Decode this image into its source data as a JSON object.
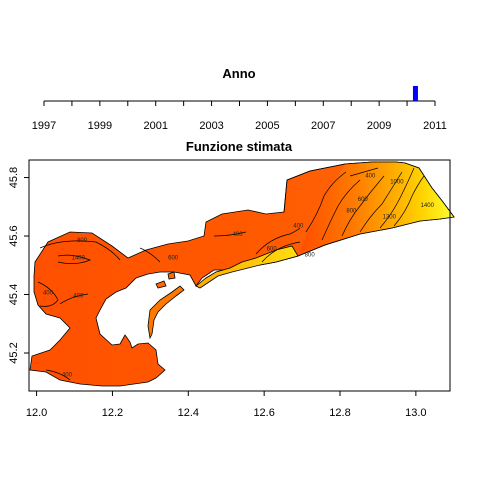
{
  "slider": {
    "title": "Anno",
    "ticks": [
      "1997",
      "1999",
      "2001",
      "2003",
      "2005",
      "2007",
      "2009",
      "2011"
    ],
    "range": [
      1997,
      2011
    ],
    "selected_year": 2010.3,
    "indicator_color": "#0000ff"
  },
  "chart_data": {
    "type": "heatmap",
    "title": "Funzione stimata",
    "xlabel": "",
    "ylabel": "",
    "xlim": [
      11.98,
      13.09
    ],
    "ylim": [
      45.07,
      45.86
    ],
    "x_ticks": [
      "12.0",
      "12.2",
      "12.4",
      "12.6",
      "12.8",
      "13.0"
    ],
    "y_ticks": [
      "45.2",
      "45.4",
      "45.6",
      "45.8"
    ],
    "x_tick_values": [
      12.0,
      12.2,
      12.4,
      12.6,
      12.8,
      13.0
    ],
    "y_tick_values": [
      45.2,
      45.4,
      45.6,
      45.8
    ],
    "contour_labels": [
      {
        "text": "800",
        "x": 12.12,
        "y": 45.58
      },
      {
        "text": "1400",
        "x": 12.11,
        "y": 45.52
      },
      {
        "text": "400",
        "x": 12.03,
        "y": 45.4
      },
      {
        "text": "400",
        "x": 12.11,
        "y": 45.39
      },
      {
        "text": "600",
        "x": 12.36,
        "y": 45.52
      },
      {
        "text": "400",
        "x": 12.53,
        "y": 45.6
      },
      {
        "text": "400",
        "x": 12.69,
        "y": 45.63
      },
      {
        "text": "600",
        "x": 12.62,
        "y": 45.55
      },
      {
        "text": "800",
        "x": 12.72,
        "y": 45.53
      },
      {
        "text": "400",
        "x": 12.88,
        "y": 45.8
      },
      {
        "text": "800",
        "x": 12.83,
        "y": 45.68
      },
      {
        "text": "600",
        "x": 12.86,
        "y": 45.72
      },
      {
        "text": "1000",
        "x": 12.95,
        "y": 45.78
      },
      {
        "text": "1200",
        "x": 12.93,
        "y": 45.66
      },
      {
        "text": "1400",
        "x": 13.03,
        "y": 45.7
      },
      {
        "text": "400",
        "x": 12.08,
        "y": 45.12
      }
    ],
    "color_scale": [
      "#ff3300",
      "#ff6600",
      "#ff9900",
      "#ffcc00",
      "#ffff33"
    ]
  }
}
